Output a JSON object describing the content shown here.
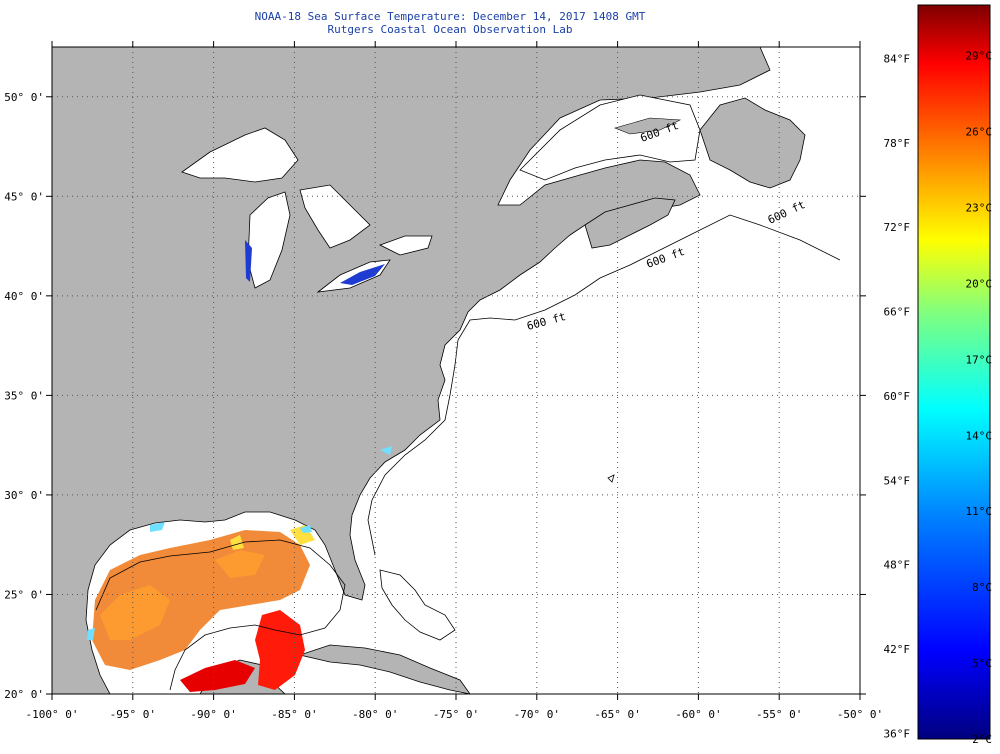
{
  "title": "NOAA-18 Sea Surface Temperature:  December 14, 2017 1408 GMT",
  "subtitle": "Rutgers Coastal Ocean Observation Lab",
  "map": {
    "lat_labels": [
      "50° 0'",
      "45° 0'",
      "40° 0'",
      "35° 0'",
      "30° 0'",
      "25° 0'",
      "20° 0'"
    ],
    "lat_values": [
      50,
      45,
      40,
      35,
      30,
      25,
      20
    ],
    "lon_labels": [
      "-100° 0'",
      "-95° 0'",
      "-90° 0'",
      "-85° 0'",
      "-80° 0'",
      "-75° 0'",
      "-70° 0'",
      "-65° 0'",
      "-60° 0'",
      "-55° 0'",
      "-50° 0'"
    ],
    "lon_values": [
      -100,
      -95,
      -90,
      -85,
      -80,
      -75,
      -70,
      -65,
      -60,
      -55,
      -50
    ],
    "extent": {
      "lon_min": -100,
      "lon_max": -50,
      "lat_min": 20,
      "lat_max": 52.5
    },
    "isobath_labels": [
      "600 ft",
      "600 ft",
      "600 ft",
      "600 ft"
    ],
    "colors": {
      "land": "#b4b4b4",
      "ocean": "#ffffff",
      "coast": "#000000",
      "grid": "#666666"
    }
  },
  "colorbar": {
    "fahrenheit_labels": [
      "84°F",
      "78°F",
      "72°F",
      "66°F",
      "60°F",
      "54°F",
      "48°F",
      "42°F",
      "36°F"
    ],
    "fahrenheit_values": [
      84,
      78,
      72,
      66,
      60,
      54,
      48,
      42,
      36
    ],
    "celsius_labels": [
      "29°C",
      "26°C",
      "23°C",
      "20°C",
      "17°C",
      "14°C",
      "11°C",
      "8°C",
      "5°C",
      "2°C"
    ],
    "celsius_values": [
      29,
      26,
      23,
      20,
      17,
      14,
      11,
      8,
      5,
      2
    ],
    "range_c": [
      2,
      31
    ],
    "colors": [
      "#00007f",
      "#0000ff",
      "#007fff",
      "#00ffff",
      "#7fff7f",
      "#ffff00",
      "#ff7f00",
      "#ff0000",
      "#7f0000"
    ]
  }
}
